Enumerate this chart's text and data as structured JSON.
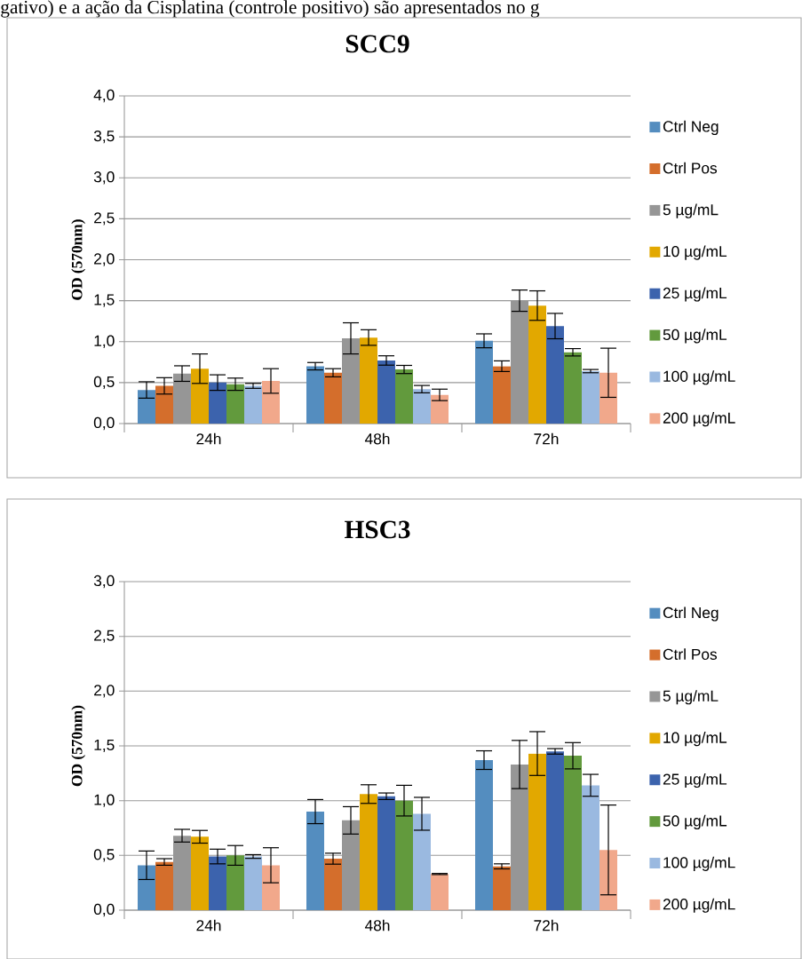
{
  "chart_data": [
    {
      "type": "bar",
      "title": "SCC9",
      "ylabel": "OD (570nm)",
      "annotations": [
        "gativo) e a ação da Cisplatina (controle positivo) são apresentados no g"
      ],
      "categories": [
        "24h",
        "48h",
        "72h"
      ],
      "ylim": [
        0,
        4
      ],
      "yticks": [
        {
          "value": 0,
          "label": "0,0"
        },
        {
          "value": 0.5,
          "label": "0,5"
        },
        {
          "value": 1,
          "label": "1,0"
        },
        {
          "value": 1.5,
          "label": "1,5"
        },
        {
          "value": 2,
          "label": "2,0"
        },
        {
          "value": 2.5,
          "label": "2,5"
        },
        {
          "value": 3,
          "label": "3,0"
        },
        {
          "value": 3.5,
          "label": "3,5"
        },
        {
          "value": 4,
          "label": "4,0"
        }
      ],
      "grid": "y",
      "legend": "right",
      "series": [
        {
          "name": "Ctrl Neg",
          "color": "#548dbf",
          "values": [
            0.41,
            0.7,
            1.01
          ],
          "errors": [
            0.1,
            0.045,
            0.085
          ]
        },
        {
          "name": "Ctrl Pos",
          "color": "#d46e2c",
          "values": [
            0.46,
            0.62,
            0.7
          ],
          "errors": [
            0.1,
            0.05,
            0.065
          ]
        },
        {
          "name": "5 µg/mL",
          "color": "#969696",
          "values": [
            0.61,
            1.04,
            1.5
          ],
          "errors": [
            0.095,
            0.19,
            0.13
          ]
        },
        {
          "name": "10 µg/mL",
          "color": "#e2a800",
          "values": [
            0.67,
            1.05,
            1.44
          ],
          "errors": [
            0.18,
            0.095,
            0.18
          ]
        },
        {
          "name": "25 µg/mL",
          "color": "#3c63ad",
          "values": [
            0.5,
            0.77,
            1.19
          ],
          "errors": [
            0.095,
            0.057,
            0.155
          ]
        },
        {
          "name": "50 µg/mL",
          "color": "#629a3d",
          "values": [
            0.48,
            0.66,
            0.87
          ],
          "errors": [
            0.075,
            0.05,
            0.045
          ]
        },
        {
          "name": "100 µg/mL",
          "color": "#9ab9e0",
          "values": [
            0.46,
            0.42,
            0.64
          ],
          "errors": [
            0.03,
            0.045,
            0.02
          ]
        },
        {
          "name": "200 µg/mL",
          "color": "#f1a88b",
          "values": [
            0.52,
            0.35,
            0.62
          ],
          "errors": [
            0.15,
            0.07,
            0.3
          ]
        }
      ]
    },
    {
      "type": "bar",
      "title": "HSC3",
      "ylabel": "OD (570nm)",
      "categories": [
        "24h",
        "48h",
        "72h"
      ],
      "ylim": [
        0,
        3
      ],
      "yticks": [
        {
          "value": 0,
          "label": "0,0"
        },
        {
          "value": 0.5,
          "label": "0,5"
        },
        {
          "value": 1,
          "label": "1,0"
        },
        {
          "value": 1.5,
          "label": "1,5"
        },
        {
          "value": 2,
          "label": "2,0"
        },
        {
          "value": 2.5,
          "label": "2,5"
        },
        {
          "value": 3,
          "label": "3,0"
        }
      ],
      "grid": "y",
      "legend": "right",
      "series": [
        {
          "name": "Ctrl Neg",
          "color": "#548dbf",
          "values": [
            0.41,
            0.9,
            1.37
          ],
          "errors": [
            0.13,
            0.11,
            0.085
          ]
        },
        {
          "name": "Ctrl Pos",
          "color": "#d46e2c",
          "values": [
            0.44,
            0.47,
            0.4
          ],
          "errors": [
            0.03,
            0.05,
            0.023
          ]
        },
        {
          "name": "5 µg/mL",
          "color": "#969696",
          "values": [
            0.68,
            0.82,
            1.33
          ],
          "errors": [
            0.058,
            0.125,
            0.22
          ]
        },
        {
          "name": "10 µg/mL",
          "color": "#e2a800",
          "values": [
            0.67,
            1.06,
            1.43
          ],
          "errors": [
            0.058,
            0.085,
            0.2
          ]
        },
        {
          "name": "25 µg/mL",
          "color": "#3c63ad",
          "values": [
            0.49,
            1.04,
            1.45
          ],
          "errors": [
            0.067,
            0.03,
            0.025
          ]
        },
        {
          "name": "50 µg/mL",
          "color": "#629a3d",
          "values": [
            0.5,
            1.0,
            1.41
          ],
          "errors": [
            0.09,
            0.14,
            0.12
          ]
        },
        {
          "name": "100 µg/mL",
          "color": "#9ab9e0",
          "values": [
            0.49,
            0.88,
            1.14
          ],
          "errors": [
            0.017,
            0.15,
            0.1
          ]
        },
        {
          "name": "200 µg/mL",
          "color": "#f1a88b",
          "values": [
            0.41,
            0.33,
            0.55
          ],
          "errors": [
            0.16,
            0.005,
            0.41
          ]
        }
      ]
    }
  ]
}
